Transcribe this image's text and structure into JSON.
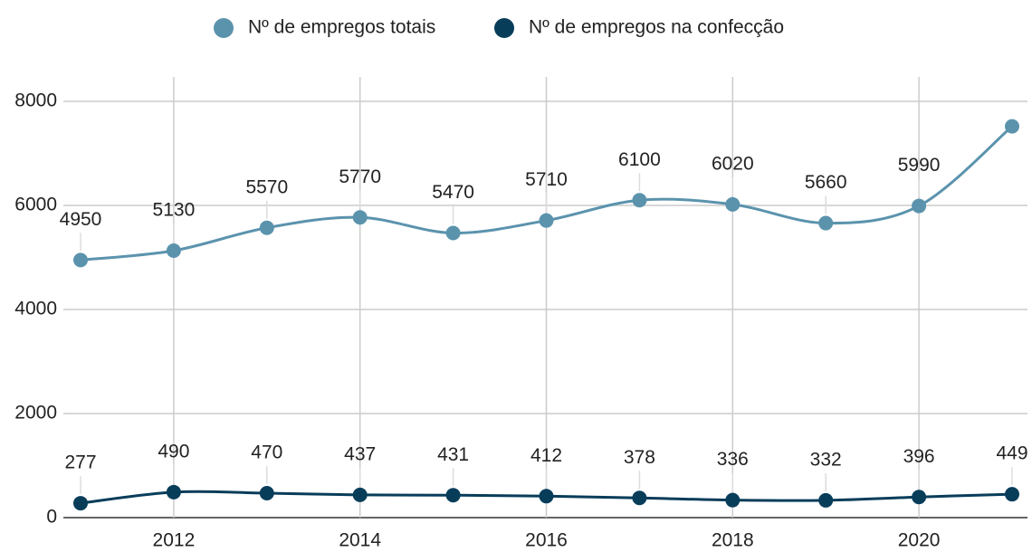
{
  "chart_data": {
    "type": "line",
    "x": [
      2011,
      2012,
      2013,
      2014,
      2015,
      2016,
      2017,
      2018,
      2019,
      2020,
      2021
    ],
    "series": [
      {
        "name": "Nº de empregos totais",
        "color": "#5b93ad",
        "values": [
          4950,
          5130,
          5570,
          5770,
          5470,
          5710,
          6100,
          6020,
          5660,
          5990,
          7520
        ],
        "value_labels": [
          "4950",
          "5130",
          "5570",
          "5770",
          "5470",
          "5710",
          "6100",
          "6020",
          "5660",
          "5990",
          null
        ]
      },
      {
        "name": "Nº de empregos na confecção",
        "color": "#083d5a",
        "values": [
          277,
          490,
          470,
          437,
          431,
          412,
          378,
          336,
          332,
          396,
          449
        ]
      }
    ],
    "xlim": [
      2011,
      2021
    ],
    "xticks": [
      2012,
      2014,
      2016,
      2018,
      2020
    ],
    "ylim": [
      0,
      8000
    ],
    "yticks": [
      0,
      2000,
      4000,
      6000,
      8000
    ],
    "grid": true,
    "legend": "top"
  }
}
